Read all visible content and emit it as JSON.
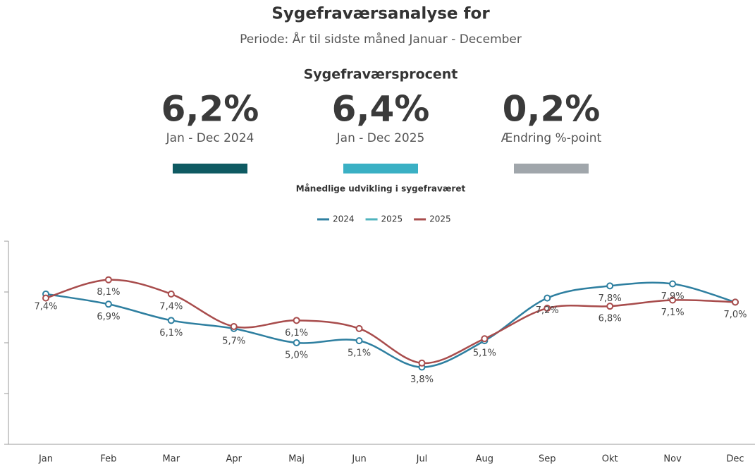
{
  "header": {
    "title": "Sygefraværsanalyse for",
    "subtitle": "Periode: År til sidste måned Januar - December"
  },
  "kpis": {
    "title": "Sygefraværsprocent",
    "items": [
      {
        "value": "6,2%",
        "label": "Jan - Dec 2024",
        "color": "#0e5a62"
      },
      {
        "value": "6,4%",
        "label": "Jan - Dec 2025",
        "color": "#3ab0c4"
      },
      {
        "value": "0,2%",
        "label": "Ændring %-point",
        "color": "#a0a6ab"
      }
    ]
  },
  "chart_data": {
    "type": "line",
    "title": "Månedlige udvikling i sygefraværet",
    "categories": [
      "Jan",
      "Feb",
      "Mar",
      "Apr",
      "Maj",
      "Jun",
      "Jul",
      "Aug",
      "Sep",
      "Okt",
      "Nov",
      "Dec"
    ],
    "series": [
      {
        "name": "2024",
        "color": "#2e7fa0",
        "values": [
          7.4,
          6.9,
          6.1,
          5.7,
          5.0,
          5.1,
          3.8,
          5.1,
          7.2,
          7.8,
          7.9,
          7.0
        ],
        "value_labels": [
          "7,4%",
          "6,9%",
          "6,1%",
          "5,7%",
          "5,0%",
          "5,1%",
          "3,8%",
          "5,1%",
          "7,2%",
          "7,8%",
          "7,9%",
          "7,0%"
        ]
      },
      {
        "name": "2025",
        "color": "#4fb3bd",
        "values": [
          null,
          null,
          null,
          null,
          null,
          null,
          null,
          null,
          null,
          null,
          null,
          null
        ]
      },
      {
        "name": "2025",
        "color": "#a84c4c",
        "values": [
          7.2,
          8.1,
          7.4,
          5.8,
          6.1,
          5.7,
          4.0,
          5.2,
          6.7,
          6.8,
          7.1,
          7.0
        ],
        "value_labels": [
          null,
          "8,1%",
          "7,4%",
          null,
          "6,1%",
          null,
          null,
          null,
          null,
          "6,8%",
          "7,1%",
          null
        ]
      }
    ],
    "ylim": [
      0,
      10
    ],
    "yticks": [
      0,
      2.5,
      5,
      7.5,
      10
    ]
  }
}
